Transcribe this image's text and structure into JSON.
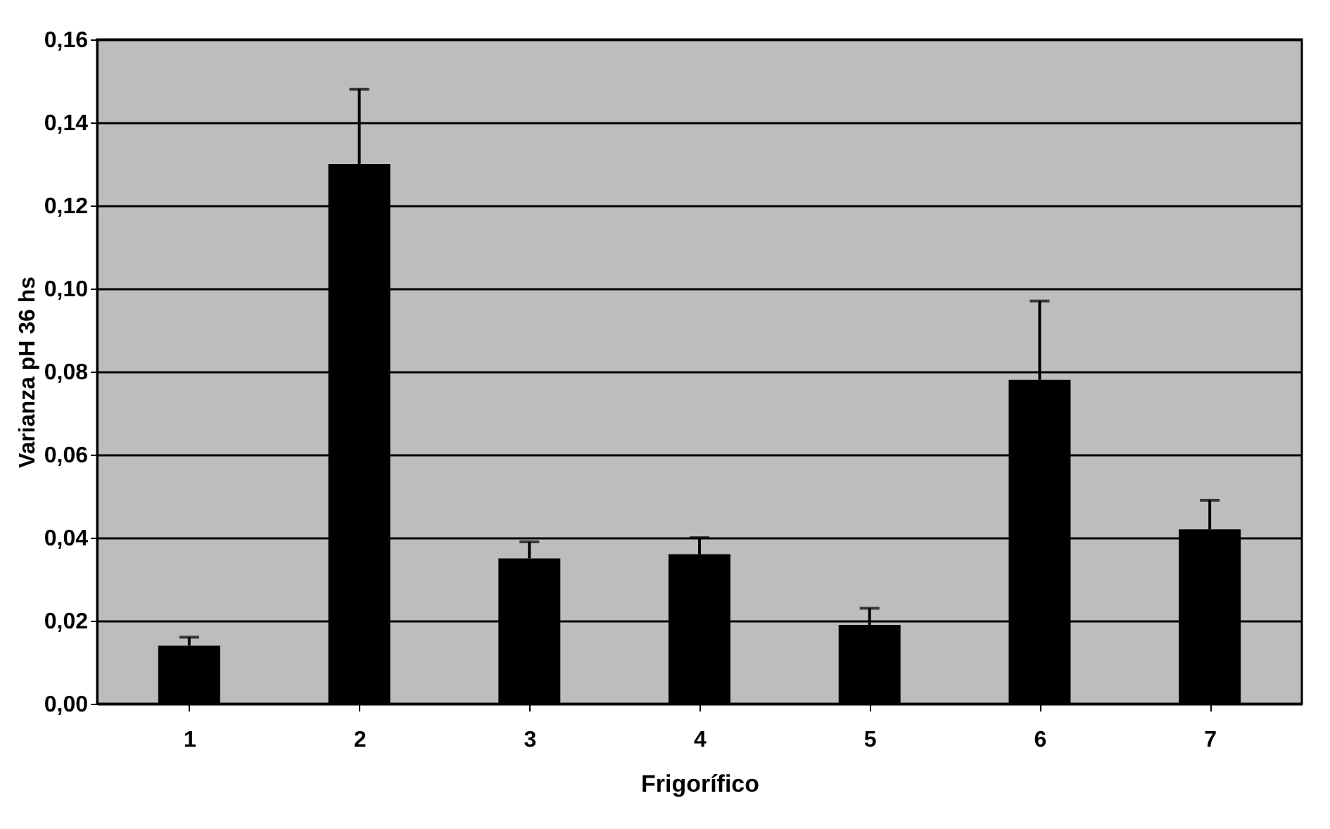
{
  "chart_data": {
    "type": "bar",
    "xlabel": "Frigorífico",
    "ylabel": "Varianza pH 36 hs",
    "categories": [
      "1",
      "2",
      "3",
      "4",
      "5",
      "6",
      "7"
    ],
    "values": [
      0.014,
      0.13,
      0.035,
      0.036,
      0.019,
      0.078,
      0.042
    ],
    "errors": [
      0.002,
      0.018,
      0.004,
      0.004,
      0.004,
      0.019,
      0.007
    ],
    "color": "#000000",
    "ylim": [
      0,
      0.16
    ],
    "yticks": [
      {
        "value": 0,
        "label": "0,00"
      },
      {
        "value": 0.02,
        "label": "0,02"
      },
      {
        "value": 0.04,
        "label": "0,04"
      },
      {
        "value": 0.06,
        "label": "0,06"
      },
      {
        "value": 0.08,
        "label": "0,08"
      },
      {
        "value": 0.1,
        "label": "0,10"
      },
      {
        "value": 0.12,
        "label": "0,12"
      },
      {
        "value": 0.14,
        "label": "0,14"
      },
      {
        "value": 0.16,
        "label": "0,16"
      }
    ],
    "grid": "y"
  }
}
